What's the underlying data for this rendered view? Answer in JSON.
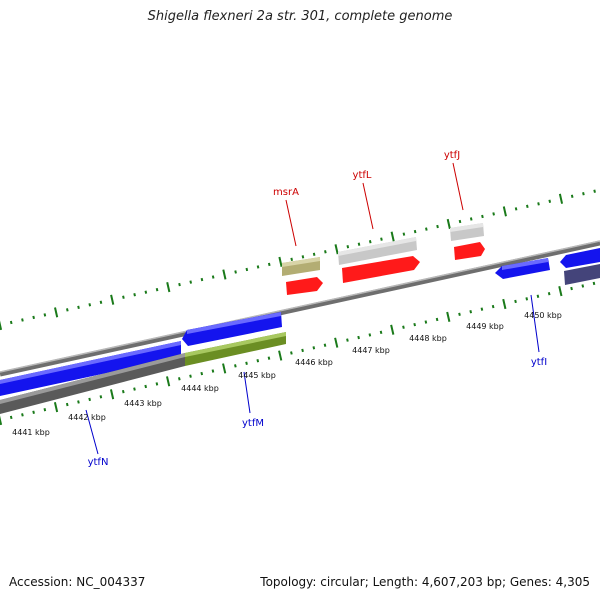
{
  "title": "Shigella flexneri 2a str. 301, complete genome",
  "footer": {
    "accession_label": "Accession:",
    "accession": "NC_004337",
    "topology_label": "Topology:",
    "topology": "circular",
    "length_label": "Length:",
    "length": "4,607,203 bp",
    "genes_label": "Genes:",
    "genes": "4,305"
  },
  "scale_labels": [
    "4441 kbp",
    "4442 kbp",
    "4443 kbp",
    "4444 kbp",
    "4445 kbp",
    "4446 kbp",
    "4447 kbp",
    "4448 kbp",
    "4449 kbp",
    "4450 kbp"
  ],
  "gene_labels": [
    {
      "name": "msrA",
      "strand": "plus"
    },
    {
      "name": "ytfL",
      "strand": "plus"
    },
    {
      "name": "ytfJ",
      "strand": "plus"
    },
    {
      "name": "ytfN",
      "strand": "minus"
    },
    {
      "name": "ytfM",
      "strand": "minus"
    },
    {
      "name": "ytfI",
      "strand": "minus"
    }
  ],
  "colors": {
    "plus_label": "#cc0000",
    "minus_label": "#0000cc",
    "plus_gene": "#ff0000",
    "minus_gene": "#0000ee",
    "gray_gene": "#c8c8c8",
    "olive_gene": "#b3ad73",
    "green_gene": "#6b8e23",
    "navy_gene": "#44447a",
    "axis": "#888888",
    "tick": "#1a7a1a"
  }
}
